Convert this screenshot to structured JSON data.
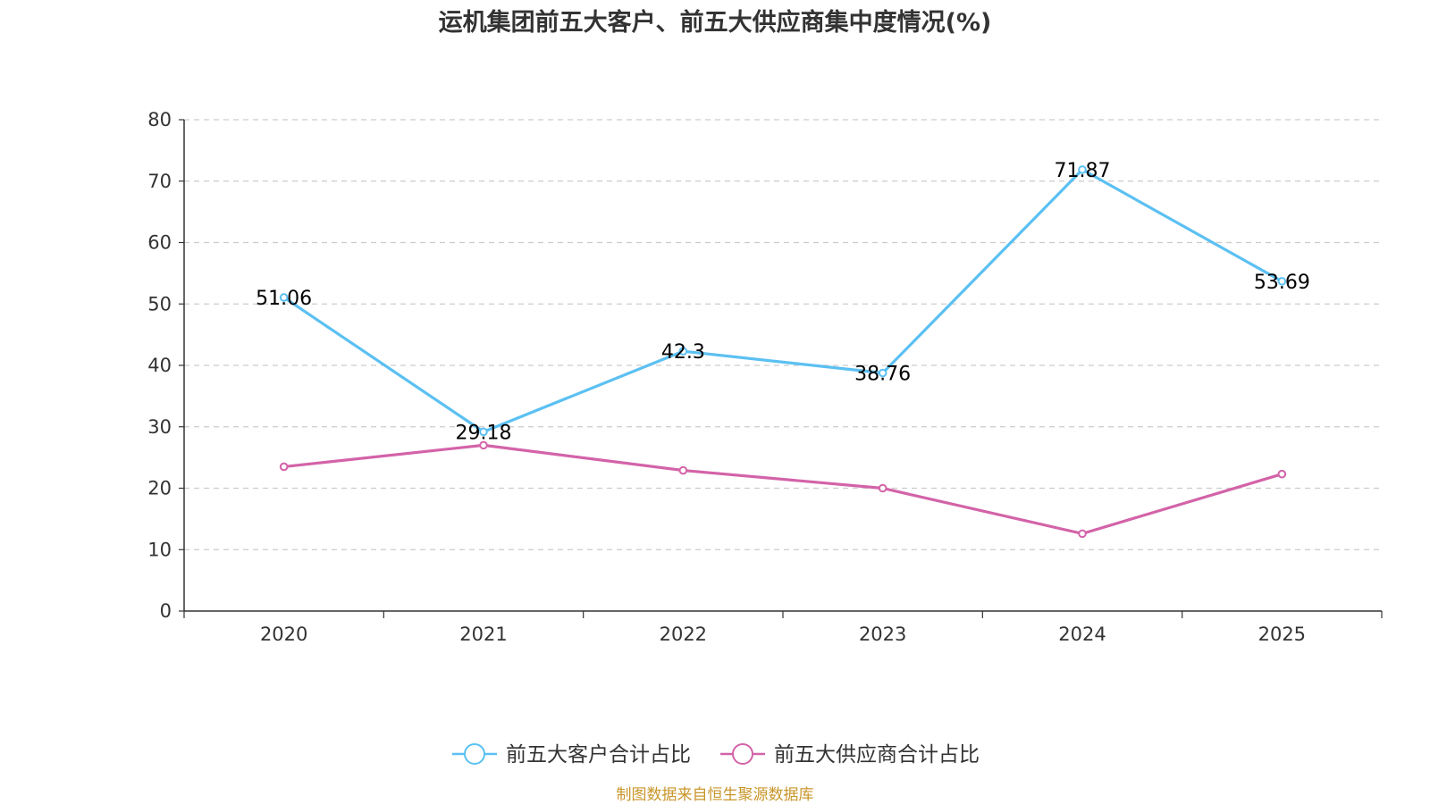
{
  "chart_data": {
    "type": "line",
    "title": "运机集团前五大客户、前五大供应商集中度情况(%)",
    "categories": [
      "2020",
      "2021",
      "2022",
      "2023",
      "2024",
      "2025"
    ],
    "y_ticks": [
      "0",
      "10",
      "20",
      "30",
      "40",
      "50",
      "60",
      "70",
      "80"
    ],
    "ylim": [
      0,
      80
    ],
    "grid": true,
    "legend_position": "bottom-center",
    "series": [
      {
        "name": "前五大客户合计占比",
        "color": "#5bc0f2",
        "values": [
          51.06,
          29.18,
          42.3,
          38.76,
          71.87,
          53.69
        ],
        "labels": [
          "51.06",
          "29.18",
          "42.3",
          "38.76",
          "71.87",
          "53.69"
        ]
      },
      {
        "name": "前五大供应商合计占比",
        "color": "#d363a8",
        "values": [
          23.5,
          27.0,
          22.9,
          20.0,
          12.6,
          22.3
        ]
      }
    ],
    "source": "制图数据来自恒生聚源数据库"
  }
}
